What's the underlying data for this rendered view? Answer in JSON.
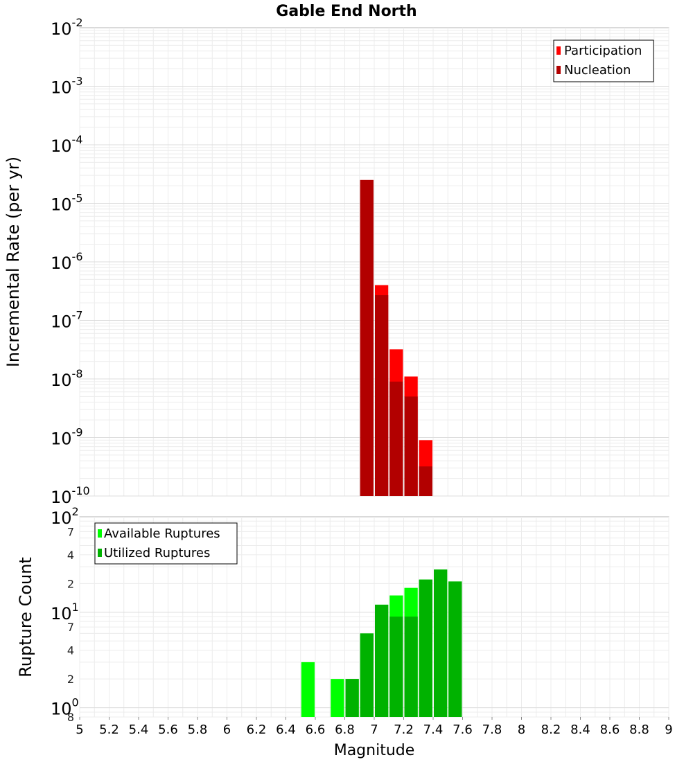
{
  "title": "Gable End North",
  "chart_data": [
    {
      "type": "bar",
      "panel": "top",
      "ylabel": "Incremental Rate (per yr)",
      "yscale": "log",
      "ylim": [
        1e-10,
        0.01
      ],
      "xlim": [
        5,
        9
      ],
      "bin_width": 0.1,
      "y_ticks": [
        {
          "base": "10",
          "exp": "-2"
        },
        {
          "base": "10",
          "exp": "-3"
        },
        {
          "base": "10",
          "exp": "-4"
        },
        {
          "base": "10",
          "exp": "-5"
        },
        {
          "base": "10",
          "exp": "-6"
        },
        {
          "base": "10",
          "exp": "-7"
        },
        {
          "base": "10",
          "exp": "-8"
        },
        {
          "base": "10",
          "exp": "-9"
        },
        {
          "base": "10",
          "exp": "-10"
        }
      ],
      "legend_position": "top-right",
      "series": [
        {
          "name": "Participation",
          "color": "#ff0000",
          "x": [
            6.95,
            7.05,
            7.15,
            7.25,
            7.35
          ],
          "values": [
            2.5e-05,
            4e-07,
            3.2e-08,
            1.1e-08,
            9e-10
          ]
        },
        {
          "name": "Nucleation",
          "color": "#b20000",
          "x": [
            6.95,
            7.05,
            7.15,
            7.25,
            7.35
          ],
          "values": [
            2.5e-05,
            2.7e-07,
            9e-09,
            5e-09,
            3.2e-10
          ]
        }
      ]
    },
    {
      "type": "bar",
      "panel": "bottom",
      "ylabel": "Rupture Count",
      "yscale": "log",
      "ylim": [
        0.8,
        100
      ],
      "xlim": [
        5,
        9
      ],
      "bin_width": 0.1,
      "y_ticks": [
        {
          "base": "10",
          "exp": "2"
        },
        {
          "base": "10",
          "exp": "1"
        },
        {
          "base": "10",
          "exp": "0"
        }
      ],
      "minor_ticks": [
        {
          "label": "7",
          "value": 70
        },
        {
          "label": "4",
          "value": 40
        },
        {
          "label": "2",
          "value": 20
        },
        {
          "label": "7",
          "value": 7
        },
        {
          "label": "4",
          "value": 4
        },
        {
          "label": "2",
          "value": 2
        },
        {
          "label": "8",
          "value": 0.8
        }
      ],
      "legend_position": "top-left",
      "series": [
        {
          "name": "Available Ruptures",
          "color": "#00ff00",
          "x": [
            6.55,
            6.75,
            6.85,
            6.95,
            7.05,
            7.15,
            7.25,
            7.35,
            7.45,
            7.55
          ],
          "values": [
            3,
            2,
            2,
            6,
            12,
            15,
            18,
            22,
            28,
            21
          ]
        },
        {
          "name": "Utilized Ruptures",
          "color": "#00b200",
          "x": [
            6.85,
            6.95,
            7.05,
            7.15,
            7.25,
            7.35,
            7.45,
            7.55
          ],
          "values": [
            2,
            6,
            12,
            9,
            9,
            22,
            28,
            21
          ]
        }
      ]
    }
  ],
  "x_axis": {
    "label": "Magnitude",
    "ticks": [
      "5",
      "5.2",
      "5.4",
      "5.6",
      "5.8",
      "6",
      "6.2",
      "6.4",
      "6.6",
      "6.8",
      "7",
      "7.2",
      "7.4",
      "7.6",
      "7.8",
      "8",
      "8.2",
      "8.4",
      "8.6",
      "8.8",
      "9"
    ]
  }
}
